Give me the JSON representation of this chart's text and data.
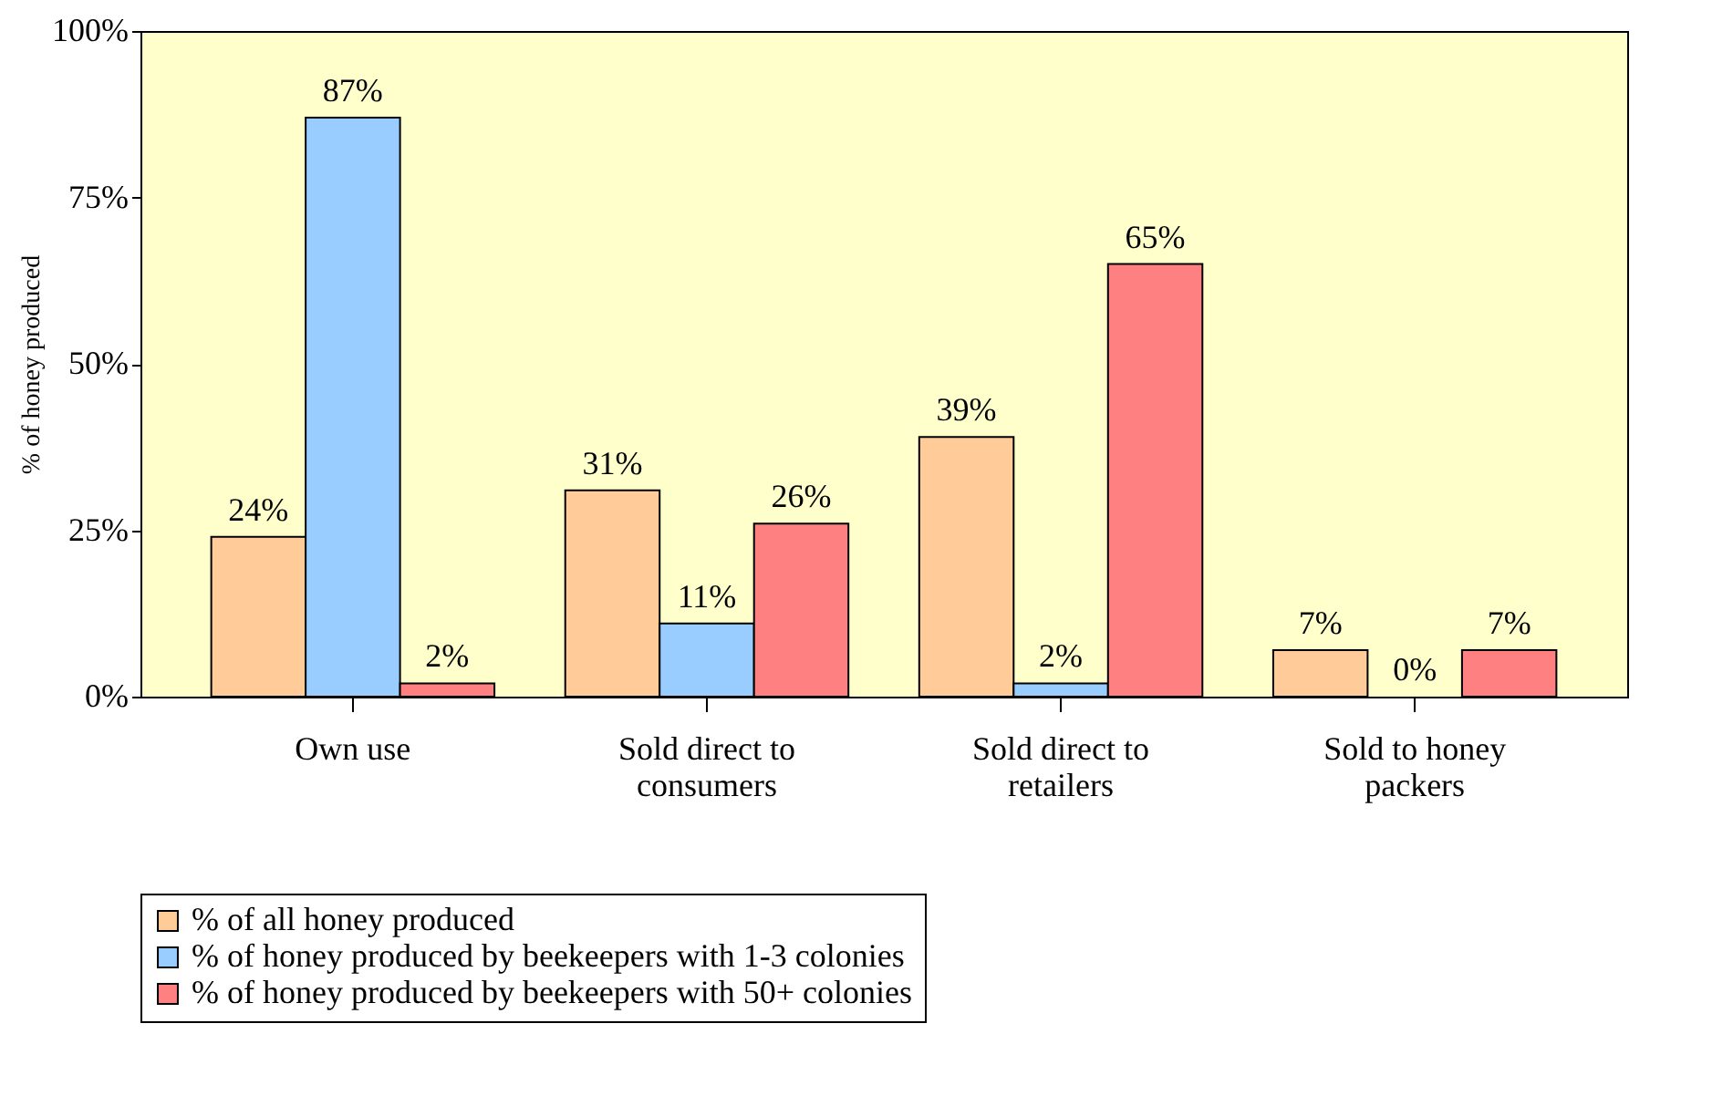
{
  "chart_data": {
    "type": "bar",
    "ylabel": "% of honey produced",
    "categories": [
      "Own use",
      "Sold direct to consumers",
      "Sold direct to retailers",
      "Sold to honey packers"
    ],
    "series": [
      {
        "name": "% of all honey produced",
        "color": "#ffcc99",
        "values": [
          24,
          31,
          39,
          7
        ],
        "value_labels": [
          "24%",
          "31%",
          "39%",
          "7%"
        ]
      },
      {
        "name": "% of honey produced by beekeepers with 1-3 colonies",
        "color": "#99ccff",
        "values": [
          87,
          11,
          2,
          0
        ],
        "value_labels": [
          "87%",
          "11%",
          "2%",
          "0%"
        ]
      },
      {
        "name": "% of honey produced by beekeepers with 50+ colonies",
        "color": "#ff8080",
        "values": [
          2,
          26,
          65,
          7
        ],
        "value_labels": [
          "2%",
          "26%",
          "65%",
          "7%"
        ]
      }
    ],
    "ylim": [
      0,
      100
    ],
    "yticks": [
      {
        "value": 0,
        "label": "0%"
      },
      {
        "value": 25,
        "label": "25%"
      },
      {
        "value": 50,
        "label": "50%"
      },
      {
        "value": 75,
        "label": "75%"
      },
      {
        "value": 100,
        "label": "100%"
      }
    ],
    "grid": false,
    "legend": "bottom"
  }
}
